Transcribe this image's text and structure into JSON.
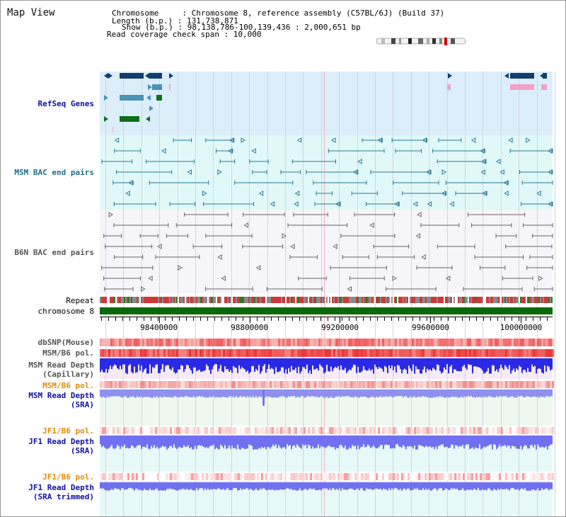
{
  "window": {
    "title": "Map View"
  },
  "info": {
    "chromosome_line": "Chromosome     : Chromosome 8, reference assembly (C57BL/6J) (Build 37)",
    "length_line": "Length (b.p.) : 131,738,871",
    "show_line": "Show (b.p.) : 98,138,786-100,139,436 : 2,000,651 bp",
    "coverage_line": "Read coverage check span : 10,000"
  },
  "tracks": {
    "refseq": "RefSeq Genes",
    "msm_bac": "MSM BAC end pairs",
    "b6n_bac": "B6N BAC end pairs",
    "repeat": "Repeat",
    "chromosome": "chromosome 8",
    "dbsnp": "dbSNP(Mouse)",
    "msm_b6_pol": "MSM/B6 pol.",
    "msm_depth_cap_1": "MSM Read Depth",
    "msm_depth_cap_2": "(Capillary)",
    "msm_b6_pol_2": "MSM/B6 pol.",
    "msm_depth_sra_1": "MSM Read Depth",
    "msm_depth_sra_2": "(SRA)",
    "jf1_b6_pol": "JF1/B6 pol.",
    "jf1_depth_sra_1": "JF1 Read Depth",
    "jf1_depth_sra_2": "(SRA)",
    "jf1_b6_pol_2": "JF1/B6 pol.",
    "jf1_depth_trim_1": "JF1 Read Depth",
    "jf1_depth_trim_2": "(SRA trimmed)"
  },
  "axis": {
    "ticks": [
      {
        "label": "98400000",
        "value": 98400000
      },
      {
        "label": "98800000",
        "value": 98800000
      },
      {
        "label": "99200000",
        "value": 99200000
      },
      {
        "label": "99600000",
        "value": 99600000
      },
      {
        "label": "100000000",
        "value": 100000000
      }
    ],
    "start": 98138786,
    "end": 100139436
  },
  "colors": {
    "refseq_bg": "#dceefa",
    "msm_bg": "#e0f8f8",
    "b6n_bg": "#f6f6fa",
    "gene_navy": "#123d6e",
    "gene_blue": "#4a92b6",
    "gene_green": "#0d6e1a",
    "gene_pink": "#f4a0c8",
    "msm_pair": "#2a7a96",
    "b6n_pair": "#666666",
    "chromosome_bar": "#0a6a0a",
    "snp_bar": "#f37070",
    "depth_blue": "#2a2ae6",
    "depth_sra": "#9090f0",
    "jf1_depth": "#7070f0",
    "highlight_line": "#f0b0c0"
  }
}
